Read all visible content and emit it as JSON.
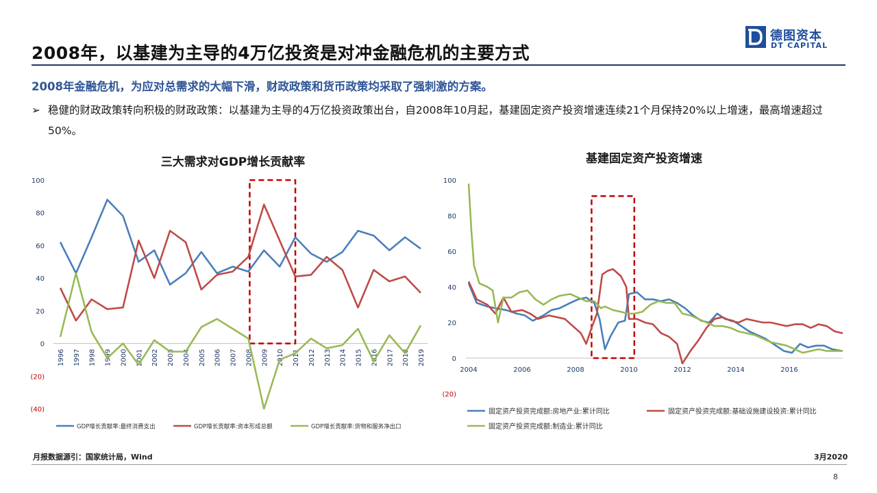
{
  "header": {
    "title": "2008年，以基建为主导的4万亿投资是对冲金融危机的主要方式",
    "logo_cn": "德图资本",
    "logo_en": "DT CAPITAL"
  },
  "content": {
    "subtitle": "2008年金融危机，为应对总需求的大幅下滑，财政政策和货币政策均采取了强刺激的方案。",
    "bullet_mark": "➢",
    "bullet_text": "稳健的财政政策转向积极的财政政策：以基建为主导的4万亿投资政策出台，自2008年10月起，基建固定资产投资增速连续21个月保持20%以上增速，最高增速超过50%。"
  },
  "footer": {
    "source": "月报数据源引：国家统计局，Wind",
    "date": "3月2020",
    "page": "8"
  },
  "colors": {
    "blue": "#4a7ebb",
    "red": "#be4b48",
    "green": "#98b954",
    "highlight": "#c00000"
  },
  "chart_data": [
    {
      "type": "line",
      "title": "三大需求对GDP增长贡献率",
      "categories": [
        "1996",
        "1997",
        "1998",
        "1999",
        "2000",
        "2001",
        "2002",
        "2003",
        "2004",
        "2005",
        "2006",
        "2007",
        "2008",
        "2009",
        "2010",
        "2011",
        "2012",
        "2013",
        "2014",
        "2015",
        "2016",
        "2017",
        "2018",
        "2019"
      ],
      "ylim": [
        -40,
        100
      ],
      "yticks": [
        {
          "v": 100,
          "label": "100"
        },
        {
          "v": 80,
          "label": "80"
        },
        {
          "v": 60,
          "label": "60"
        },
        {
          "v": 40,
          "label": "40"
        },
        {
          "v": 20,
          "label": "20"
        },
        {
          "v": 0,
          "label": "0"
        },
        {
          "v": -20,
          "label": "(20)"
        },
        {
          "v": -40,
          "label": "(40)"
        }
      ],
      "highlight": [
        "2008",
        "2011"
      ],
      "legend_position": "bottom",
      "series": [
        {
          "name": "GDP增长贡献率:最终消费支出",
          "color": "#4a7ebb",
          "values": [
            62,
            43,
            65,
            88,
            78,
            50,
            57,
            36,
            43,
            56,
            43,
            47,
            44,
            57,
            47,
            65,
            55,
            50,
            56,
            69,
            66,
            57,
            65,
            58
          ]
        },
        {
          "name": "GDP增长贡献率:资本形成总额",
          "color": "#be4b48",
          "values": [
            34,
            14,
            27,
            21,
            22,
            63,
            40,
            69,
            62,
            33,
            42,
            44,
            53,
            85,
            63,
            41,
            42,
            53,
            45,
            22,
            45,
            38,
            41,
            31
          ]
        },
        {
          "name": "GDP增长贡献率:货物和服务净出口",
          "color": "#98b954",
          "values": [
            4,
            43,
            7,
            -9,
            0,
            -13,
            2,
            -5,
            -5,
            10,
            15,
            9,
            3,
            -40,
            -10,
            -6,
            3,
            -3,
            -1,
            9,
            -11,
            5,
            -6,
            11
          ]
        }
      ]
    },
    {
      "type": "line",
      "title": "基建固定资产投资增速",
      "xlim": [
        2004,
        2018
      ],
      "xticks": [
        "2004",
        "2006",
        "2008",
        "2010",
        "2012",
        "2014",
        "2016"
      ],
      "ylim": [
        -20,
        100
      ],
      "yticks": [
        {
          "v": 100,
          "label": "100"
        },
        {
          "v": 80,
          "label": "80"
        },
        {
          "v": 60,
          "label": "60"
        },
        {
          "v": 40,
          "label": "40"
        },
        {
          "v": 20,
          "label": "20"
        },
        {
          "v": 0,
          "label": "0"
        },
        {
          "v": -20,
          "label": "(20)"
        }
      ],
      "highlight": [
        2008.6,
        2010.2
      ],
      "legend_position": "bottom",
      "series": [
        {
          "name": "固定资产投资完成额:房地产业:累计同比",
          "color": "#4a7ebb",
          "points": [
            [
              2004.0,
              42
            ],
            [
              2004.3,
              31
            ],
            [
              2004.7,
              29
            ],
            [
              2005.0,
              28
            ],
            [
              2005.4,
              27
            ],
            [
              2005.8,
              25
            ],
            [
              2006.1,
              24
            ],
            [
              2006.4,
              21
            ],
            [
              2006.8,
              24
            ],
            [
              2007.1,
              27
            ],
            [
              2007.4,
              28
            ],
            [
              2007.8,
              31
            ],
            [
              2008.1,
              33
            ],
            [
              2008.4,
              34
            ],
            [
              2008.7,
              31
            ],
            [
              2008.9,
              22
            ],
            [
              2009.1,
              5
            ],
            [
              2009.3,
              12
            ],
            [
              2009.6,
              20
            ],
            [
              2009.85,
              21
            ],
            [
              2010.0,
              36
            ],
            [
              2010.3,
              37
            ],
            [
              2010.6,
              33
            ],
            [
              2010.9,
              33
            ],
            [
              2011.2,
              32
            ],
            [
              2011.5,
              33
            ],
            [
              2011.8,
              31
            ],
            [
              2012.1,
              28
            ],
            [
              2012.4,
              24
            ],
            [
              2012.7,
              21
            ],
            [
              2013.0,
              20
            ],
            [
              2013.3,
              25
            ],
            [
              2013.6,
              22
            ],
            [
              2013.9,
              21
            ],
            [
              2014.2,
              18
            ],
            [
              2014.5,
              15
            ],
            [
              2014.8,
              13
            ],
            [
              2015.1,
              11
            ],
            [
              2015.4,
              8
            ],
            [
              2015.8,
              4
            ],
            [
              2016.1,
              3
            ],
            [
              2016.4,
              8
            ],
            [
              2016.7,
              6
            ],
            [
              2017.0,
              7
            ],
            [
              2017.3,
              7
            ],
            [
              2017.6,
              5
            ],
            [
              2018.0,
              4
            ]
          ]
        },
        {
          "name": "固定资产投资完成额:基础设施建设投资:累计同比",
          "color": "#be4b48",
          "points": [
            [
              2004.0,
              43
            ],
            [
              2004.3,
              33
            ],
            [
              2004.7,
              30
            ],
            [
              2005.0,
              25
            ],
            [
              2005.3,
              34
            ],
            [
              2005.6,
              26
            ],
            [
              2006.0,
              27
            ],
            [
              2006.3,
              25
            ],
            [
              2006.6,
              22
            ],
            [
              2007.0,
              24
            ],
            [
              2007.3,
              23
            ],
            [
              2007.6,
              22
            ],
            [
              2007.9,
              18
            ],
            [
              2008.2,
              14
            ],
            [
              2008.4,
              8
            ],
            [
              2008.6,
              17
            ],
            [
              2008.8,
              25
            ],
            [
              2009.0,
              47
            ],
            [
              2009.2,
              49
            ],
            [
              2009.4,
              50
            ],
            [
              2009.7,
              46
            ],
            [
              2009.9,
              40
            ],
            [
              2010.0,
              22
            ],
            [
              2010.3,
              22
            ],
            [
              2010.6,
              20
            ],
            [
              2010.9,
              19
            ],
            [
              2011.2,
              14
            ],
            [
              2011.5,
              12
            ],
            [
              2011.8,
              8
            ],
            [
              2012.0,
              -3
            ],
            [
              2012.3,
              4
            ],
            [
              2012.6,
              10
            ],
            [
              2012.9,
              17
            ],
            [
              2013.2,
              22
            ],
            [
              2013.5,
              23
            ],
            [
              2013.8,
              21
            ],
            [
              2014.1,
              20
            ],
            [
              2014.4,
              22
            ],
            [
              2014.7,
              21
            ],
            [
              2015.0,
              20
            ],
            [
              2015.3,
              20
            ],
            [
              2015.6,
              19
            ],
            [
              2015.9,
              18
            ],
            [
              2016.2,
              19
            ],
            [
              2016.5,
              19
            ],
            [
              2016.8,
              17
            ],
            [
              2017.1,
              19
            ],
            [
              2017.4,
              18
            ],
            [
              2017.7,
              15
            ],
            [
              2018.0,
              14
            ]
          ]
        },
        {
          "name": "固定资产投资完成额:制造业:累计同比",
          "color": "#98b954",
          "points": [
            [
              2004.0,
              98
            ],
            [
              2004.1,
              72
            ],
            [
              2004.2,
              52
            ],
            [
              2004.4,
              42
            ],
            [
              2004.7,
              40
            ],
            [
              2004.9,
              38
            ],
            [
              2005.1,
              20
            ],
            [
              2005.3,
              34
            ],
            [
              2005.6,
              34
            ],
            [
              2005.9,
              37
            ],
            [
              2006.2,
              38
            ],
            [
              2006.5,
              33
            ],
            [
              2006.8,
              30
            ],
            [
              2007.1,
              33
            ],
            [
              2007.4,
              35
            ],
            [
              2007.8,
              36
            ],
            [
              2008.1,
              34
            ],
            [
              2008.4,
              32
            ],
            [
              2008.7,
              32
            ],
            [
              2008.95,
              28
            ],
            [
              2009.1,
              29
            ],
            [
              2009.4,
              27
            ],
            [
              2009.7,
              26
            ],
            [
              2009.95,
              25
            ],
            [
              2010.2,
              25
            ],
            [
              2010.5,
              26
            ],
            [
              2010.8,
              30
            ],
            [
              2011.1,
              32
            ],
            [
              2011.4,
              31
            ],
            [
              2011.7,
              31
            ],
            [
              2012.0,
              25
            ],
            [
              2012.3,
              24
            ],
            [
              2012.6,
              22
            ],
            [
              2012.9,
              20
            ],
            [
              2013.2,
              18
            ],
            [
              2013.5,
              18
            ],
            [
              2013.8,
              17
            ],
            [
              2014.1,
              15
            ],
            [
              2014.4,
              14
            ],
            [
              2014.7,
              13
            ],
            [
              2015.0,
              11
            ],
            [
              2015.3,
              9
            ],
            [
              2015.6,
              8
            ],
            [
              2015.9,
              7
            ],
            [
              2016.2,
              5
            ],
            [
              2016.5,
              3
            ],
            [
              2016.8,
              4
            ],
            [
              2017.1,
              5
            ],
            [
              2017.4,
              4
            ],
            [
              2017.7,
              4
            ],
            [
              2018.0,
              4
            ]
          ]
        }
      ]
    }
  ]
}
